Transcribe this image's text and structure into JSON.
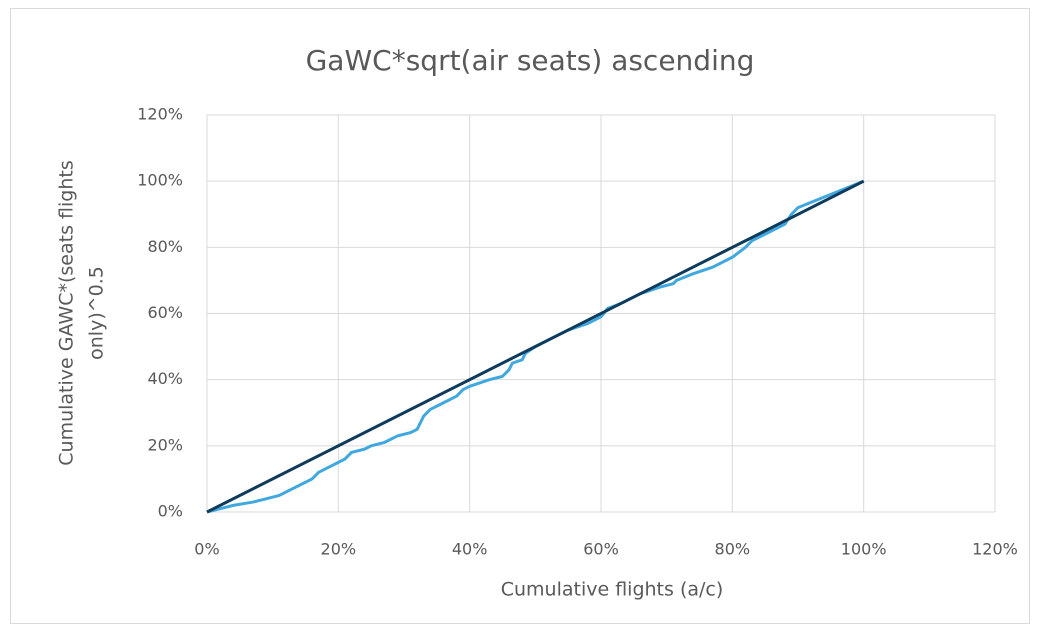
{
  "chart_data": {
    "type": "line",
    "title": "GaWC*sqrt(air seats)  ascending",
    "xlabel": "Cumulative flights (a/c)",
    "ylabel": [
      "Cumulative GAWC*(seats flights",
      "only)^0.5"
    ],
    "xlim": [
      0,
      120
    ],
    "ylim": [
      0,
      120
    ],
    "xticks": [
      {
        "value": 0,
        "label": "0%"
      },
      {
        "value": 20,
        "label": "20%"
      },
      {
        "value": 40,
        "label": "40%"
      },
      {
        "value": 60,
        "label": "60%"
      },
      {
        "value": 80,
        "label": "80%"
      },
      {
        "value": 100,
        "label": "100%"
      },
      {
        "value": 120,
        "label": "120%"
      }
    ],
    "yticks": [
      {
        "value": 0,
        "label": "0%"
      },
      {
        "value": 20,
        "label": "20%"
      },
      {
        "value": 40,
        "label": "40%"
      },
      {
        "value": 60,
        "label": "60%"
      },
      {
        "value": 80,
        "label": "80%"
      },
      {
        "value": 100,
        "label": "100%"
      },
      {
        "value": 120,
        "label": "120%"
      }
    ],
    "grid": true,
    "series": [
      {
        "color": "#41a8df",
        "x": [
          0,
          2,
          4,
          7,
          9,
          11,
          13,
          15,
          16,
          17,
          19,
          20,
          21,
          22,
          24,
          25,
          27,
          29,
          31,
          32,
          33,
          34,
          35,
          37,
          38,
          39,
          40,
          43,
          45,
          46,
          46.5,
          48,
          48.5,
          50,
          52,
          55,
          58,
          60,
          61,
          63,
          66,
          69,
          71,
          71.5,
          74,
          77,
          80,
          82,
          83,
          85,
          88,
          89,
          90,
          95,
          100
        ],
        "values": [
          0,
          1,
          2,
          3,
          4,
          5,
          7,
          9,
          10,
          12,
          14,
          15,
          16,
          18,
          19,
          20,
          21,
          23,
          24,
          25,
          29,
          31,
          32,
          34,
          35,
          37,
          38,
          40,
          41,
          43,
          45,
          46,
          48,
          50,
          52,
          55,
          57,
          59,
          61.5,
          63,
          66,
          68,
          69,
          70,
          72,
          74,
          77,
          80,
          82,
          84,
          87,
          90,
          92,
          96,
          100
        ]
      },
      {
        "color": "#0e3a5c",
        "x": [
          0,
          100
        ],
        "values": [
          0,
          100
        ]
      }
    ]
  }
}
